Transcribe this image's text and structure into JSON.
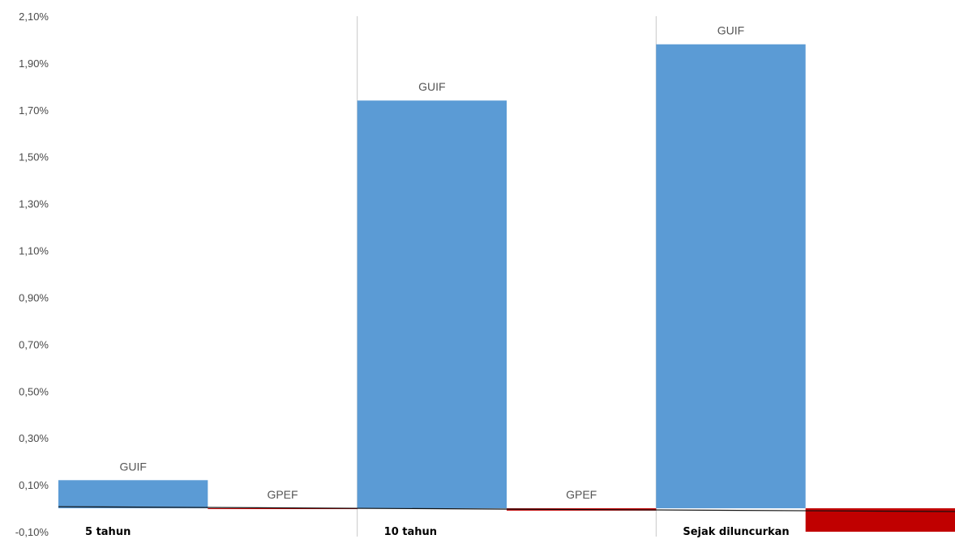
{
  "chart_data": {
    "type": "bar",
    "title": "",
    "xlabel": "",
    "ylabel": "",
    "categories": [
      "5 tahun",
      "10 tahun",
      "Sejak diluncurkan"
    ],
    "series": [
      {
        "name": "GUIF",
        "color": "#5b9bd5",
        "values": [
          0.12,
          1.74,
          1.98
        ],
        "labels": [
          "GUIF",
          "GUIF",
          "GUIF"
        ]
      },
      {
        "name": "GPEF",
        "color": "#c00000",
        "values": [
          -0.003,
          -0.01,
          -0.1
        ],
        "labels": [
          "GPEF",
          "GPEF",
          ""
        ]
      }
    ],
    "ylim": [
      -0.1,
      2.1
    ],
    "yticks": [
      2.1,
      1.9,
      1.7,
      1.5,
      1.3,
      1.1,
      0.9,
      0.7,
      0.5,
      0.3,
      0.1,
      -0.1
    ],
    "ytick_labels": [
      "2,10%",
      "1,90%",
      "1,70%",
      "1,50%",
      "1,30%",
      "1,10%",
      "0,90%",
      "0,70%",
      "0,50%",
      "0,30%",
      "0,10%",
      "-0,10%"
    ],
    "grid": false,
    "legend": "none"
  }
}
